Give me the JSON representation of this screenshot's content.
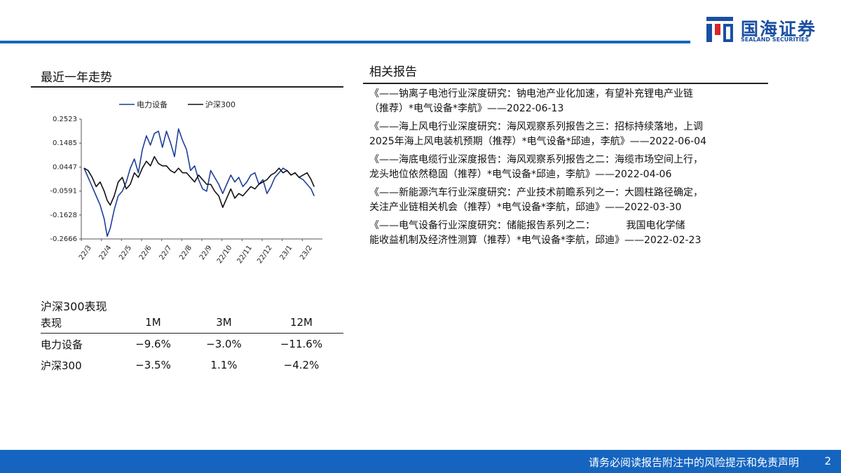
{
  "brand": {
    "name_cn": "国海证券",
    "name_en": "SEALAND SECURITIES",
    "color": "#1a4fa3"
  },
  "left": {
    "trend_title": "最近一年走势",
    "perf_title": "沪深300表现",
    "perf_table": {
      "header": [
        "表现",
        "1M",
        "3M",
        "12M"
      ],
      "rows": [
        [
          "电力设备",
          "−9.6%",
          "−3.0%",
          "−11.6%"
        ],
        [
          "沪深300",
          "−3.5%",
          "1.1%",
          "−4.2%"
        ]
      ]
    }
  },
  "right": {
    "title": "相关报告",
    "reports": [
      {
        "line1": "《——钠离子电池行业深度研究：钠电池产业化加速，有望补充锂电产业链",
        "line2": "（推荐）*电气设备*李航》——2022-06-13"
      },
      {
        "line1": "《——海上风电行业深度研究：海风观察系列报告之三：招标持续落地，上调",
        "line2": "2025年海上风电装机预期（推荐）*电气设备*邱迪，李航》——2022-06-04"
      },
      {
        "line1": "《——海底电缆行业深度报告：海风观察系列报告之二：海缆市场空间上行，",
        "line2": "龙头地位依然稳固（推荐）*电气设备*邱迪，李航》——2022-04-06"
      },
      {
        "line1": "《——新能源汽车行业深度研究：产业技术前瞻系列之一：大圆柱路径确定，",
        "line2": "关注产业链相关机会（推荐）*电气设备*李航，邱迪》——2022-03-30"
      },
      {
        "line1": "《——电气设备行业深度研究：储能报告系列之二：          我国电化学储",
        "line2": "能收益机制及经济性测算（推荐）*电气设备*李航，邱迪》——2022-02-23"
      }
    ]
  },
  "footer": {
    "disclaimer": "请务必阅读报告附注中的风险提示和免责声明",
    "page": "2"
  },
  "chart_data": {
    "type": "line",
    "title": "",
    "xlabel": "",
    "ylabel": "",
    "ylim": [
      -0.2666,
      0.2523
    ],
    "yticks": [
      "0.2523",
      "0.1485",
      "0.0447",
      "-0.0591",
      "-0.1628",
      "-0.2666"
    ],
    "xticks": [
      "22/3",
      "22/4",
      "22/5",
      "22/6",
      "22/7",
      "22/8",
      "22/9",
      "22/10",
      "22/11",
      "22/12",
      "23/1",
      "23/2"
    ],
    "legend_position": "top",
    "series": [
      {
        "name": "电力设备",
        "color": "#1f3f99",
        "x": [
          0,
          0.2,
          0.4,
          0.6,
          0.8,
          1.0,
          1.15,
          1.3,
          1.5,
          1.7,
          1.9,
          2.1,
          2.3,
          2.5,
          2.7,
          2.9,
          3.1,
          3.3,
          3.5,
          3.7,
          3.9,
          4.1,
          4.3,
          4.5,
          4.7,
          4.9,
          5.1,
          5.3,
          5.5,
          5.7,
          5.9,
          6.1,
          6.3,
          6.5,
          6.7,
          6.9,
          7.1,
          7.3,
          7.5,
          7.7,
          7.9,
          8.1,
          8.3,
          8.5,
          8.7,
          8.9,
          9.1,
          9.3,
          9.5,
          9.7,
          9.9,
          10.1,
          10.3,
          10.5,
          10.7,
          10.9,
          11.1,
          11.3,
          11.45
        ],
        "y": [
          0.04,
          0.0,
          -0.04,
          -0.08,
          -0.12,
          -0.18,
          -0.255,
          -0.22,
          -0.14,
          -0.08,
          -0.06,
          -0.02,
          0.04,
          0.08,
          0.02,
          0.12,
          0.18,
          0.14,
          0.19,
          0.2,
          0.13,
          0.2,
          0.15,
          0.09,
          0.21,
          0.16,
          0.12,
          0.03,
          0.05,
          -0.01,
          -0.05,
          -0.06,
          0.03,
          0.0,
          -0.03,
          -0.07,
          -0.03,
          0.01,
          -0.02,
          0.0,
          -0.04,
          -0.02,
          0.01,
          0.02,
          -0.03,
          -0.01,
          -0.07,
          -0.04,
          0.0,
          0.02,
          0.04,
          0.03,
          0.01,
          0.02,
          0.0,
          -0.01,
          -0.03,
          -0.05,
          -0.08
        ]
      },
      {
        "name": "沪深300",
        "color": "#111111",
        "x": [
          0,
          0.2,
          0.4,
          0.6,
          0.8,
          1.0,
          1.15,
          1.3,
          1.5,
          1.7,
          1.9,
          2.1,
          2.3,
          2.5,
          2.7,
          2.9,
          3.1,
          3.3,
          3.5,
          3.7,
          3.9,
          4.1,
          4.3,
          4.5,
          4.7,
          4.9,
          5.1,
          5.3,
          5.5,
          5.7,
          5.9,
          6.1,
          6.3,
          6.5,
          6.7,
          6.9,
          7.1,
          7.3,
          7.5,
          7.7,
          7.9,
          8.1,
          8.3,
          8.5,
          8.7,
          8.9,
          9.1,
          9.3,
          9.5,
          9.7,
          9.9,
          10.1,
          10.3,
          10.5,
          10.7,
          10.9,
          11.1,
          11.3,
          11.45
        ],
        "y": [
          0.04,
          0.03,
          0.0,
          -0.04,
          -0.02,
          -0.06,
          -0.1,
          -0.12,
          -0.08,
          -0.02,
          0.0,
          -0.05,
          -0.03,
          0.02,
          0.0,
          0.04,
          0.07,
          0.05,
          0.09,
          0.06,
          0.05,
          0.05,
          0.03,
          0.02,
          0.04,
          0.02,
          0.02,
          0.0,
          -0.02,
          0.01,
          -0.01,
          -0.03,
          -0.03,
          -0.06,
          -0.08,
          -0.13,
          -0.09,
          -0.05,
          -0.09,
          -0.07,
          -0.08,
          -0.06,
          -0.04,
          -0.05,
          -0.03,
          -0.02,
          -0.01,
          0.01,
          0.02,
          0.04,
          0.02,
          0.03,
          0.01,
          0.02,
          0.0,
          0.01,
          0.02,
          -0.01,
          -0.04
        ]
      }
    ]
  }
}
